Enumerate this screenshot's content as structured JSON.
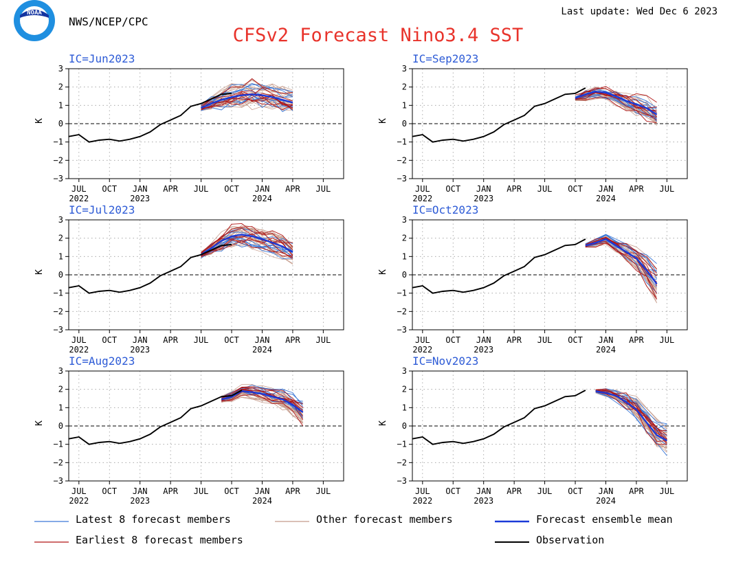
{
  "header": {
    "agency": "NWS/NCEP/CPC",
    "logo_text": "NOAA",
    "last_update": "Last update: Wed Dec 6 2023",
    "title": "CFSv2 Forecast Nino3.4 SST"
  },
  "colors": {
    "title": "#e8332b",
    "panel_label": "#2d5bd6",
    "latest": "#3a78d8",
    "other": "#c49a8a",
    "mean": "#1a3ad8",
    "earliest": "#b01515",
    "observation": "#000000",
    "logo_blue": "#1f8fe0",
    "logo_dark": "#1434a0"
  },
  "legend": {
    "latest": "Latest 8 forecast members",
    "other": "Other forecast members",
    "mean": "Forecast ensemble mean",
    "earliest": "Earliest 8 forecast members",
    "observation": "Observation"
  },
  "chart_data": {
    "type": "line",
    "ylabel": "K",
    "ylim": [
      -3,
      3
    ],
    "yticks": [
      -3,
      -2,
      -1,
      0,
      1,
      2,
      3
    ],
    "x_axis": {
      "start": "2022-06",
      "end": "2024-09",
      "tick_months": [
        "2022-07",
        "2022-10",
        "2023-01",
        "2023-04",
        "2023-07",
        "2023-10",
        "2024-01",
        "2024-04",
        "2024-07"
      ],
      "tick_labels": [
        "JUL",
        "OCT",
        "JAN",
        "APR",
        "JUL",
        "OCT",
        "JAN",
        "APR",
        "JUL"
      ],
      "year_labels": [
        {
          "month": "2022-07",
          "label": "2022"
        },
        {
          "month": "2023-01",
          "label": "2023"
        },
        {
          "month": "2024-01",
          "label": "2024"
        }
      ]
    },
    "observation": {
      "months": [
        "2022-06",
        "2022-07",
        "2022-08",
        "2022-09",
        "2022-10",
        "2022-11",
        "2022-12",
        "2023-01",
        "2023-02",
        "2023-03",
        "2023-04",
        "2023-05",
        "2023-06",
        "2023-07",
        "2023-08",
        "2023-09",
        "2023-10",
        "2023-11"
      ],
      "values": [
        -0.7,
        -0.6,
        -1.0,
        -0.9,
        -0.85,
        -0.95,
        -0.85,
        -0.7,
        -0.45,
        -0.05,
        0.2,
        0.45,
        0.95,
        1.1,
        1.35,
        1.6,
        1.65,
        1.95
      ]
    },
    "panels": [
      {
        "label": "IC=Jun2023",
        "start": "2023-07",
        "obs_end": "2023-10",
        "mean": [
          0.85,
          1.1,
          1.3,
          1.45,
          1.55,
          1.6,
          1.55,
          1.45,
          1.3,
          1.15
        ],
        "spread": [
          0.15,
          0.35,
          0.5,
          0.6,
          0.7,
          0.7,
          0.7,
          0.65,
          0.6,
          0.55
        ]
      },
      {
        "label": "IC=Sep2023",
        "start": "2023-10",
        "obs_end": "2023-11",
        "mean": [
          1.4,
          1.6,
          1.75,
          1.7,
          1.5,
          1.25,
          1.05,
          0.85,
          0.5
        ],
        "spread": [
          0.15,
          0.3,
          0.35,
          0.4,
          0.45,
          0.5,
          0.55,
          0.6,
          0.7
        ]
      },
      {
        "label": "IC=Jul2023",
        "start": "2023-07",
        "obs_end": "2023-10",
        "mean": [
          1.1,
          1.45,
          1.85,
          2.1,
          2.2,
          2.1,
          1.95,
          1.75,
          1.55,
          1.25
        ],
        "spread": [
          0.15,
          0.3,
          0.45,
          0.55,
          0.6,
          0.6,
          0.6,
          0.6,
          0.6,
          0.6
        ]
      },
      {
        "label": "IC=Oct2023",
        "start": "2023-11",
        "obs_end": "2023-11",
        "mean": [
          1.6,
          1.75,
          1.95,
          1.6,
          1.25,
          0.9,
          0.25,
          -0.5
        ],
        "spread": [
          0.1,
          0.2,
          0.25,
          0.35,
          0.45,
          0.6,
          0.75,
          0.9
        ]
      },
      {
        "label": "IC=Aug2023",
        "start": "2023-09",
        "obs_end": "2023-11",
        "mean": [
          1.45,
          1.6,
          1.9,
          1.85,
          1.75,
          1.6,
          1.45,
          1.15,
          0.75
        ],
        "spread": [
          0.15,
          0.25,
          0.3,
          0.35,
          0.4,
          0.45,
          0.5,
          0.55,
          0.6
        ]
      },
      {
        "label": "IC=Nov2023",
        "start": "2023-12",
        "obs_end": "2023-11",
        "mean": [
          1.9,
          1.8,
          1.65,
          1.3,
          0.9,
          0.2,
          -0.5,
          -0.8
        ],
        "spread": [
          0.1,
          0.2,
          0.3,
          0.45,
          0.6,
          0.7,
          0.8,
          0.85
        ]
      }
    ]
  }
}
